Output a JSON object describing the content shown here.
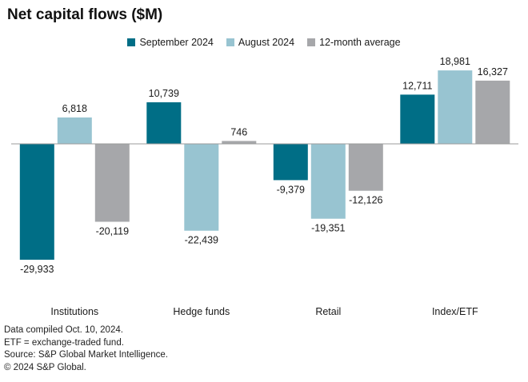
{
  "chart_data": {
    "type": "bar",
    "title": "Net capital flows ($M)",
    "xlabel": "",
    "ylabel": "",
    "categories": [
      "Institutions",
      "Hedge funds",
      "Retail",
      "Index/ETF"
    ],
    "series": [
      {
        "name": "September 2024",
        "color": "#006e86",
        "values": [
          -29933,
          10739,
          -9379,
          12711
        ],
        "labels": [
          "-29,933",
          "10,739",
          "-9,379",
          "12,711"
        ]
      },
      {
        "name": "August 2024",
        "color": "#98c4d1",
        "values": [
          6818,
          -22439,
          -19351,
          18981
        ],
        "labels": [
          "6,818",
          "-22,439",
          "-19,351",
          "18,981"
        ]
      },
      {
        "name": "12-month average",
        "color": "#a6a7aa",
        "values": [
          -20119,
          746,
          -12126,
          16327
        ],
        "labels": [
          "-20,119",
          "746",
          "-12,126",
          "16,327"
        ]
      }
    ],
    "grid": false,
    "legend": "top-center"
  },
  "notes": [
    "Data compiled Oct. 10, 2024.",
    "ETF = exchange-traded fund.",
    "Source: S&P Global Market Intelligence.",
    "© 2024 S&P Global."
  ]
}
